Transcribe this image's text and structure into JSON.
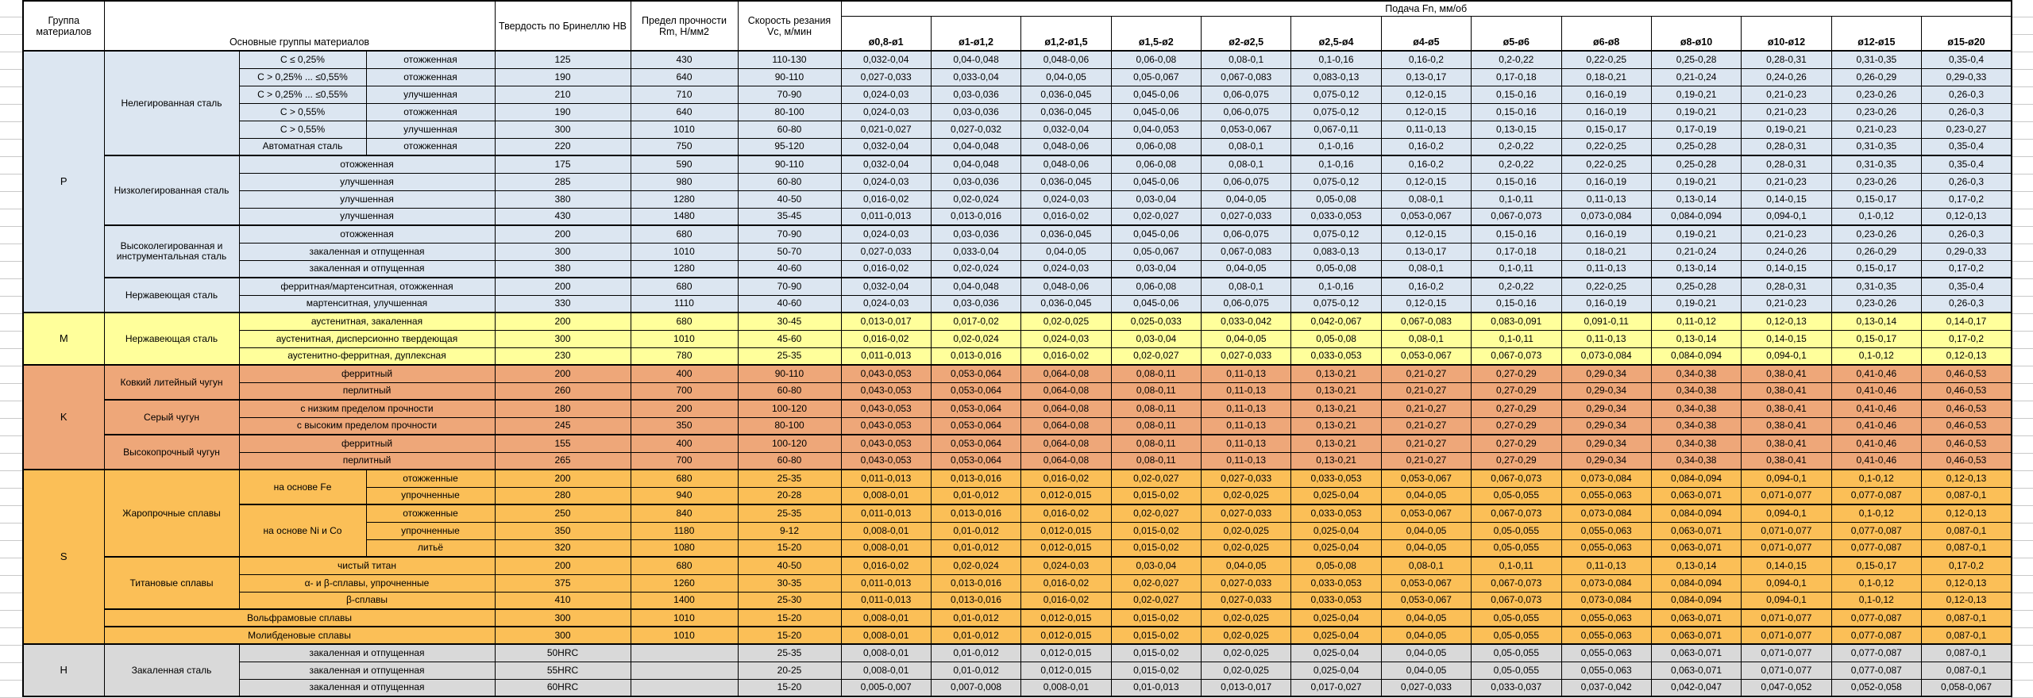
{
  "header": {
    "group_col": "Группа материалов",
    "material_col": "Основные группы материалов",
    "hardness_col": "Твердость по Бринеллю HB",
    "strength_col": "Предел прочности Rm, Н/мм2",
    "speed_col": "Скорость резания Vc, м/мин",
    "feed_span": "Подача Fn, мм/об",
    "diameters": [
      "ø0,8-ø1",
      "ø1-ø1,2",
      "ø1,2-ø1,5",
      "ø1,5-ø2",
      "ø2-ø2,5",
      "ø2,5-ø4",
      "ø4-ø5",
      "ø5-ø6",
      "ø6-ø8",
      "ø8-ø10",
      "ø10-ø12",
      "ø12-ø15",
      "ø15-ø20"
    ],
    "border_color": "#000000"
  },
  "colors": {
    "P": "#DCE6F1",
    "M": "#FFFF9B",
    "K": "#EEA779",
    "S": "#FBBF57",
    "H": "#D9D9D9"
  },
  "feed_patterns": {
    "A": [
      "0,032-0,04",
      "0,04-0,048",
      "0,048-0,06",
      "0,06-0,08",
      "0,08-0,1",
      "0,1-0,16",
      "0,16-0,2",
      "0,2-0,22",
      "0,22-0,25",
      "0,25-0,28",
      "0,28-0,31",
      "0,31-0,35",
      "0,35-0,4"
    ],
    "B": [
      "0,027-0,033",
      "0,033-0,04",
      "0,04-0,05",
      "0,05-0,067",
      "0,067-0,083",
      "0,083-0,13",
      "0,13-0,17",
      "0,17-0,18",
      "0,18-0,21",
      "0,21-0,24",
      "0,24-0,26",
      "0,26-0,29",
      "0,29-0,33"
    ],
    "C": [
      "0,024-0,03",
      "0,03-0,036",
      "0,036-0,045",
      "0,045-0,06",
      "0,06-0,075",
      "0,075-0,12",
      "0,12-0,15",
      "0,15-0,16",
      "0,16-0,19",
      "0,19-0,21",
      "0,21-0,23",
      "0,23-0,26",
      "0,26-0,3"
    ],
    "D": [
      "0,021-0,027",
      "0,027-0,032",
      "0,032-0,04",
      "0,04-0,053",
      "0,053-0,067",
      "0,067-0,11",
      "0,11-0,13",
      "0,13-0,15",
      "0,15-0,17",
      "0,17-0,19",
      "0,19-0,21",
      "0,21-0,23",
      "0,23-0,27"
    ],
    "E": [
      "0,016-0,02",
      "0,02-0,024",
      "0,024-0,03",
      "0,03-0,04",
      "0,04-0,05",
      "0,05-0,08",
      "0,08-0,1",
      "0,1-0,11",
      "0,11-0,13",
      "0,13-0,14",
      "0,14-0,15",
      "0,15-0,17",
      "0,17-0,2"
    ],
    "F": [
      "0,011-0,013",
      "0,013-0,016",
      "0,016-0,02",
      "0,02-0,027",
      "0,027-0,033",
      "0,033-0,053",
      "0,053-0,067",
      "0,067-0,073",
      "0,073-0,084",
      "0,084-0,094",
      "0,094-0,1",
      "0,1-0,12",
      "0,12-0,13"
    ],
    "G": [
      "0,008-0,01",
      "0,01-0,012",
      "0,012-0,015",
      "0,015-0,02",
      "0,02-0,025",
      "0,025-0,04",
      "0,04-0,05",
      "0,05-0,055",
      "0,055-0,063",
      "0,063-0,071",
      "0,071-0,077",
      "0,077-0,087",
      "0,087-0,1"
    ],
    "K1": [
      "0,043-0,053",
      "0,053-0,064",
      "0,064-0,08",
      "0,08-0,11",
      "0,11-0,13",
      "0,13-0,21",
      "0,21-0,27",
      "0,27-0,29",
      "0,29-0,34",
      "0,34-0,38",
      "0,38-0,41",
      "0,41-0,46",
      "0,46-0,53"
    ],
    "M1": [
      "0,013-0,017",
      "0,017-0,02",
      "0,02-0,025",
      "0,025-0,033",
      "0,033-0,042",
      "0,042-0,067",
      "0,067-0,083",
      "0,083-0,091",
      "0,091-0,11",
      "0,11-0,12",
      "0,12-0,13",
      "0,13-0,14",
      "0,14-0,17"
    ],
    "H1": [
      "0,005-0,007",
      "0,007-0,008",
      "0,008-0,01",
      "0,01-0,013",
      "0,013-0,017",
      "0,017-0,027",
      "0,027-0,033",
      "0,033-0,037",
      "0,037-0,042",
      "0,042-0,047",
      "0,047-0,052",
      "0,052-0,058",
      "0,058-0,067"
    ]
  },
  "groups": [
    {
      "code": "P",
      "rows": [
        {
          "labels": [
            {
              "t": "Нелегированная сталь",
              "rs": 6
            },
            {
              "t": "C ≤ 0,25%"
            },
            {
              "t": "отожженная"
            }
          ],
          "hb": "125",
          "rm": "430",
          "vc": "110-130",
          "f": "A"
        },
        {
          "labels": [
            {
              "t": "C > 0,25% ... ≤0,55%"
            },
            {
              "t": "отожженная"
            }
          ],
          "hb": "190",
          "rm": "640",
          "vc": "90-110",
          "f": "B"
        },
        {
          "labels": [
            {
              "t": "C > 0,25% ... ≤0,55%"
            },
            {
              "t": "улучшенная"
            }
          ],
          "hb": "210",
          "rm": "710",
          "vc": "70-90",
          "f": "C"
        },
        {
          "labels": [
            {
              "t": "C > 0,55%"
            },
            {
              "t": "отожженная"
            }
          ],
          "hb": "190",
          "rm": "640",
          "vc": "80-100",
          "f": "C"
        },
        {
          "labels": [
            {
              "t": "C > 0,55%"
            },
            {
              "t": "улучшенная"
            }
          ],
          "hb": "300",
          "rm": "1010",
          "vc": "60-80",
          "f": "D"
        },
        {
          "labels": [
            {
              "t": "Автоматная сталь"
            },
            {
              "t": "отожженная"
            }
          ],
          "hb": "220",
          "rm": "750",
          "vc": "95-120",
          "f": "A"
        },
        {
          "labels": [
            {
              "t": "Низколегированная сталь",
              "rs": 4
            },
            {
              "t": "отожженная",
              "cs": 2
            }
          ],
          "hb": "175",
          "rm": "590",
          "vc": "90-110",
          "f": "A",
          "sec": true
        },
        {
          "labels": [
            {
              "t": "улучшенная",
              "cs": 2
            }
          ],
          "hb": "285",
          "rm": "980",
          "vc": "60-80",
          "f": "C"
        },
        {
          "labels": [
            {
              "t": "улучшенная",
              "cs": 2
            }
          ],
          "hb": "380",
          "rm": "1280",
          "vc": "40-50",
          "f": "E"
        },
        {
          "labels": [
            {
              "t": "улучшенная",
              "cs": 2
            }
          ],
          "hb": "430",
          "rm": "1480",
          "vc": "35-45",
          "f": "F"
        },
        {
          "labels": [
            {
              "t": "Высоколегированная и инструментальная сталь",
              "rs": 3
            },
            {
              "t": "отожженная",
              "cs": 2
            }
          ],
          "hb": "200",
          "rm": "680",
          "vc": "70-90",
          "f": "C",
          "sec": true
        },
        {
          "labels": [
            {
              "t": "закаленная и отпущенная",
              "cs": 2
            }
          ],
          "hb": "300",
          "rm": "1010",
          "vc": "50-70",
          "f": "B"
        },
        {
          "labels": [
            {
              "t": "закаленная и отпущенная",
              "cs": 2
            }
          ],
          "hb": "380",
          "rm": "1280",
          "vc": "40-60",
          "f": "E"
        },
        {
          "labels": [
            {
              "t": "Нержавеющая сталь",
              "rs": 2
            },
            {
              "t": "ферритная/мартенситная, отожженная",
              "cs": 2
            }
          ],
          "hb": "200",
          "rm": "680",
          "vc": "70-90",
          "f": "A",
          "sec": true
        },
        {
          "labels": [
            {
              "t": "мартенситная, улучшенная",
              "cs": 2
            }
          ],
          "hb": "330",
          "rm": "1110",
          "vc": "40-60",
          "f": "C"
        }
      ]
    },
    {
      "code": "M",
      "rows": [
        {
          "labels": [
            {
              "t": "Нержавеющая сталь",
              "rs": 3
            },
            {
              "t": "аустенитная, закаленная",
              "cs": 2
            }
          ],
          "hb": "200",
          "rm": "680",
          "vc": "30-45",
          "f": "M1"
        },
        {
          "labels": [
            {
              "t": "аустенитная, дисперсионно твердеющая",
              "cs": 2
            }
          ],
          "hb": "300",
          "rm": "1010",
          "vc": "45-60",
          "f": "E"
        },
        {
          "labels": [
            {
              "t": "аустенитно-ферритная, дуплексная",
              "cs": 2
            }
          ],
          "hb": "230",
          "rm": "780",
          "vc": "25-35",
          "f": "F"
        }
      ]
    },
    {
      "code": "K",
      "rows": [
        {
          "labels": [
            {
              "t": "Ковкий литейный чугун",
              "rs": 2
            },
            {
              "t": "ферритный",
              "cs": 2
            }
          ],
          "hb": "200",
          "rm": "400",
          "vc": "90-110",
          "f": "K1"
        },
        {
          "labels": [
            {
              "t": "перлитный",
              "cs": 2
            }
          ],
          "hb": "260",
          "rm": "700",
          "vc": "60-80",
          "f": "K1"
        },
        {
          "labels": [
            {
              "t": "Серый чугун",
              "rs": 2
            },
            {
              "t": "с низким пределом прочности",
              "cs": 2
            }
          ],
          "hb": "180",
          "rm": "200",
          "vc": "100-120",
          "f": "K1",
          "sec": true
        },
        {
          "labels": [
            {
              "t": "с высоким пределом прочности",
              "cs": 2
            }
          ],
          "hb": "245",
          "rm": "350",
          "vc": "80-100",
          "f": "K1"
        },
        {
          "labels": [
            {
              "t": "Высокопрочный чугун",
              "rs": 2
            },
            {
              "t": "ферритный",
              "cs": 2
            }
          ],
          "hb": "155",
          "rm": "400",
          "vc": "100-120",
          "f": "K1",
          "sec": true
        },
        {
          "labels": [
            {
              "t": "перлитный",
              "cs": 2
            }
          ],
          "hb": "265",
          "rm": "700",
          "vc": "60-80",
          "f": "K1"
        }
      ]
    },
    {
      "code": "S",
      "rows": [
        {
          "labels": [
            {
              "t": "Жаропрочные сплавы",
              "rs": 5
            },
            {
              "t": "на основе Fe",
              "rs": 2
            },
            {
              "t": "отожженные"
            }
          ],
          "hb": "200",
          "rm": "680",
          "vc": "25-35",
          "f": "F"
        },
        {
          "labels": [
            {
              "t": "упрочненные"
            }
          ],
          "hb": "280",
          "rm": "940",
          "vc": "20-28",
          "f": "G"
        },
        {
          "labels": [
            {
              "t": "на основе Ni и Co",
              "rs": 3
            },
            {
              "t": "отожженные"
            }
          ],
          "hb": "250",
          "rm": "840",
          "vc": "25-35",
          "f": "F",
          "sec": true
        },
        {
          "labels": [
            {
              "t": "упрочненные"
            }
          ],
          "hb": "350",
          "rm": "1180",
          "vc": "9-12",
          "f": "G"
        },
        {
          "labels": [
            {
              "t": "литьё"
            }
          ],
          "hb": "320",
          "rm": "1080",
          "vc": "15-20",
          "f": "G"
        },
        {
          "labels": [
            {
              "t": "Титановые сплавы",
              "rs": 3
            },
            {
              "t": "чистый титан",
              "cs": 2
            }
          ],
          "hb": "200",
          "rm": "680",
          "vc": "40-50",
          "f": "E",
          "sec": true
        },
        {
          "labels": [
            {
              "t": "α- и β-сплавы, упрочненные",
              "cs": 2
            }
          ],
          "hb": "375",
          "rm": "1260",
          "vc": "30-35",
          "f": "F"
        },
        {
          "labels": [
            {
              "t": "β-сплавы",
              "cs": 2
            }
          ],
          "hb": "410",
          "rm": "1400",
          "vc": "25-30",
          "f": "F"
        },
        {
          "labels": [
            {
              "t": "Вольфрамовые сплавы",
              "cs": 3
            }
          ],
          "hb": "300",
          "rm": "1010",
          "vc": "15-20",
          "f": "G",
          "sec": true
        },
        {
          "labels": [
            {
              "t": "Молибденовые сплавы",
              "cs": 3
            }
          ],
          "hb": "300",
          "rm": "1010",
          "vc": "15-20",
          "f": "G",
          "sec": true
        }
      ]
    },
    {
      "code": "H",
      "rows": [
        {
          "labels": [
            {
              "t": "Закаленная сталь",
              "rs": 3
            },
            {
              "t": "закаленная и отпущенная",
              "cs": 2
            }
          ],
          "hb": "50HRC",
          "rm": "",
          "vc": "25-35",
          "f": "G"
        },
        {
          "labels": [
            {
              "t": "закаленная и отпущенная",
              "cs": 2
            }
          ],
          "hb": "55HRC",
          "rm": "",
          "vc": "20-25",
          "f": "G"
        },
        {
          "labels": [
            {
              "t": "закаленная и отпущенная",
              "cs": 2
            }
          ],
          "hb": "60HRC",
          "rm": "",
          "vc": "15-20",
          "f": "H1"
        }
      ]
    }
  ]
}
